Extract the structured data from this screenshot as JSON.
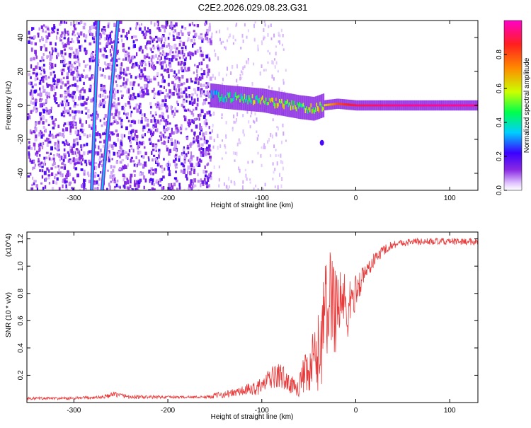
{
  "title": "C2E2.2026.029.08.23.G31",
  "colors": {
    "signal": "#e83a3a",
    "colormap_stops": [
      "#ffffff",
      "#e2c8ff",
      "#8a2be2",
      "#3b00ff",
      "#00cfff",
      "#00ff4c",
      "#ccff00",
      "#ff8a00",
      "#ff1f1f",
      "#ff00c8"
    ]
  },
  "chart_data": [
    {
      "type": "heatmap",
      "title": "C2E2.2026.029.08.23.G31",
      "xlabel": "Height of straight line (km)",
      "ylabel": "Frequency (Hz)",
      "xlim": [
        -350,
        130
      ],
      "ylim": [
        -50,
        50
      ],
      "x_ticks": [
        -300,
        -200,
        -100,
        0,
        100
      ],
      "x_tick_labels": [
        "-300",
        "-200",
        "-100",
        "0",
        "100"
      ],
      "y_ticks": [
        -40,
        -20,
        0,
        20,
        40
      ],
      "y_tick_labels": [
        "-40",
        "-20",
        "0",
        "20",
        "40"
      ],
      "colorbar": {
        "label": "Normalized spectral amplitude",
        "range": [
          0,
          1
        ],
        "ticks": [
          0.0,
          0.2,
          0.4,
          0.6,
          0.8
        ],
        "tick_labels": [
          "0.0",
          "0.2",
          "0.4",
          "0.6",
          "0.8"
        ]
      },
      "features": [
        {
          "name": "noise floor",
          "x_range": [
            -350,
            -155
          ],
          "amplitude": 0.15
        },
        {
          "name": "aliased tone A",
          "x": [
            -274,
            -281
          ],
          "y": [
            50,
            -50
          ],
          "amplitude": 0.35
        },
        {
          "name": "aliased tone B",
          "x": [
            -253,
            -270
          ],
          "y": [
            50,
            -50
          ],
          "amplitude": 0.35
        },
        {
          "name": "carrier ridge",
          "x": [
            -155,
            -140,
            -120,
            -100,
            -80,
            -60,
            -45,
            -35,
            -20,
            0,
            50,
            100,
            130
          ],
          "y": [
            6,
            5,
            4,
            3,
            1,
            -1,
            -2,
            0,
            1,
            0,
            0,
            0,
            0
          ],
          "amplitude": [
            0.35,
            0.4,
            0.45,
            0.5,
            0.55,
            0.5,
            0.5,
            0.6,
            0.8,
            0.9,
            0.95,
            0.95,
            0.95
          ]
        },
        {
          "name": "spur",
          "x": -36,
          "y": -22,
          "amplitude": 0.2
        }
      ]
    },
    {
      "type": "line",
      "xlabel": "Height of straight line (km)",
      "ylabel": "SNR (10 * v/v)",
      "y_multiplier_label": "(x10^4)",
      "xlim": [
        -350,
        130
      ],
      "ylim": [
        0,
        1.25
      ],
      "x_ticks": [
        -300,
        -200,
        -100,
        0,
        100
      ],
      "x_tick_labels": [
        "-300",
        "-200",
        "-100",
        "0",
        "100"
      ],
      "y_ticks": [
        0.2,
        0.4,
        0.6,
        0.8,
        1.0,
        1.2
      ],
      "y_tick_labels": [
        "0.2",
        "0.4",
        "0.6",
        "0.8",
        "1.0",
        "1.2"
      ],
      "series": [
        {
          "name": "SNR",
          "x": [
            -350,
            -300,
            -270,
            -255,
            -240,
            -200,
            -160,
            -150,
            -130,
            -110,
            -100,
            -90,
            -80,
            -70,
            -60,
            -55,
            -50,
            -45,
            -40,
            -35,
            -30,
            -25,
            -20,
            -15,
            -10,
            -5,
            0,
            10,
            20,
            30,
            40,
            60,
            80,
            100,
            130
          ],
          "y": [
            0.03,
            0.03,
            0.04,
            0.06,
            0.04,
            0.04,
            0.04,
            0.05,
            0.07,
            0.1,
            0.12,
            0.18,
            0.2,
            0.13,
            0.12,
            0.2,
            0.18,
            0.3,
            0.35,
            0.55,
            0.7,
            0.8,
            0.7,
            0.78,
            0.65,
            0.72,
            0.82,
            0.95,
            1.05,
            1.12,
            1.16,
            1.18,
            1.18,
            1.18,
            1.18
          ],
          "noise": [
            0.01,
            0.01,
            0.015,
            0.02,
            0.015,
            0.01,
            0.01,
            0.02,
            0.03,
            0.05,
            0.06,
            0.08,
            0.1,
            0.06,
            0.08,
            0.15,
            0.18,
            0.25,
            0.3,
            0.4,
            0.4,
            0.4,
            0.4,
            0.3,
            0.25,
            0.18,
            0.12,
            0.08,
            0.05,
            0.04,
            0.03,
            0.025,
            0.025,
            0.025,
            0.025
          ]
        }
      ]
    }
  ]
}
